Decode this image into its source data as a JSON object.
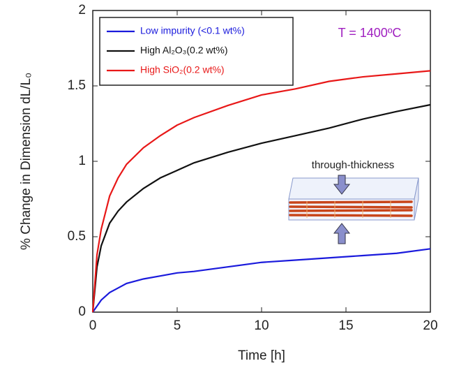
{
  "chart_data": {
    "type": "line",
    "xlabel": "Time [h]",
    "ylabel": "% Change in Dimension dL/L₀",
    "x": [
      0,
      0.25,
      0.5,
      1,
      1.5,
      2,
      3,
      4,
      5,
      6,
      8,
      10,
      12,
      14,
      16,
      18,
      20
    ],
    "series": [
      {
        "name": "Low impurity (<0.1 wt%)",
        "color": "#1a1adc",
        "values": [
          0,
          0.04,
          0.08,
          0.13,
          0.16,
          0.19,
          0.22,
          0.24,
          0.26,
          0.27,
          0.3,
          0.33,
          0.345,
          0.36,
          0.375,
          0.39,
          0.42
        ]
      },
      {
        "name": "High Al₂O₃(0.2 wt%)",
        "color": "#111111",
        "values": [
          0,
          0.3,
          0.44,
          0.59,
          0.67,
          0.73,
          0.82,
          0.89,
          0.94,
          0.99,
          1.06,
          1.12,
          1.17,
          1.22,
          1.28,
          1.33,
          1.375
        ]
      },
      {
        "name": "High SiO₂(0.2 wt%)",
        "color": "#e81818",
        "values": [
          0,
          0.38,
          0.55,
          0.77,
          0.89,
          0.98,
          1.09,
          1.17,
          1.24,
          1.29,
          1.37,
          1.44,
          1.48,
          1.53,
          1.56,
          1.58,
          1.6
        ]
      }
    ],
    "xlim": [
      0,
      20
    ],
    "xticks": [
      0,
      5,
      10,
      15,
      20
    ],
    "ylim": [
      0,
      2
    ],
    "yticks": [
      0,
      0.5,
      1,
      1.5,
      2
    ],
    "legend": "upper left",
    "annotations": [
      "T = 1400ºC",
      "through-thickness"
    ]
  }
}
